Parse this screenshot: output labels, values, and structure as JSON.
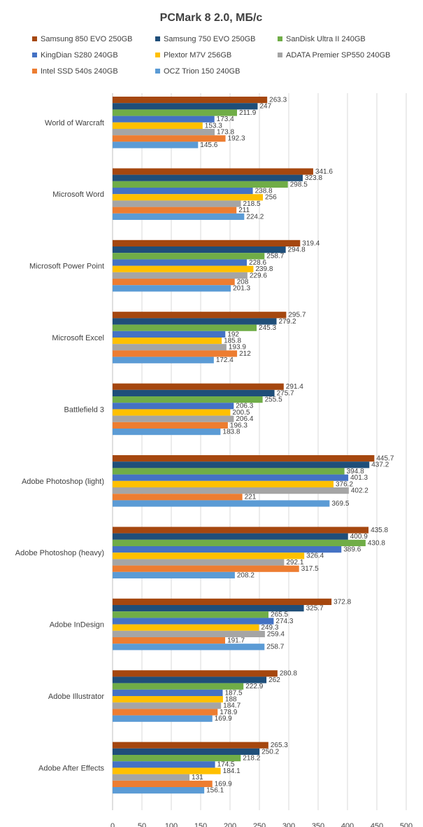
{
  "chart_data": {
    "type": "bar",
    "orientation": "horizontal",
    "title": "PCMark 8 2.0, МБ/с",
    "xlabel": "",
    "ylabel": "",
    "xlim": [
      0,
      500
    ],
    "x_ticks": [
      "0",
      "50",
      "100",
      "150",
      "200",
      "250",
      "300",
      "350",
      "400",
      "450",
      "500"
    ],
    "grid": "vertical",
    "legend_position": "top",
    "categories": [
      "World of Warcraft",
      "Microsoft Word",
      "Microsoft Power Point",
      "Microsoft Excel",
      "Battlefield 3",
      "Adobe Photoshop (light)",
      "Adobe Photoshop (heavy)",
      "Adobe InDesign",
      "Adobe Illustrator",
      "Adobe After Effects"
    ],
    "series": [
      {
        "name": "Samsung 850 EVO 250GB",
        "color": "#a5470f",
        "values": [
          263.3,
          341.6,
          319.4,
          295.7,
          291.4,
          445.7,
          435.8,
          372.8,
          280.8,
          265.3
        ]
      },
      {
        "name": "Samsung 750 EVO 250GB",
        "color": "#1f4e79",
        "values": [
          247,
          323.8,
          294.8,
          279.2,
          275.7,
          437.2,
          400.9,
          325.7,
          262,
          250.2
        ]
      },
      {
        "name": "SanDisk Ultra II 240GB",
        "color": "#70ad47",
        "values": [
          211.9,
          298.5,
          258.7,
          245.3,
          255.5,
          394.8,
          430.8,
          265.5,
          222.9,
          218.2
        ]
      },
      {
        "name": "KingDian S280 240GB",
        "color": "#4472c4",
        "values": [
          173.4,
          238.8,
          228.6,
          192,
          206.3,
          401.3,
          389.6,
          274.3,
          187.5,
          174.5
        ]
      },
      {
        "name": "Plextor M7V 256GB",
        "color": "#ffc000",
        "values": [
          153.3,
          256,
          239.8,
          185.8,
          200.5,
          376.2,
          326.4,
          249.3,
          188,
          184.1
        ]
      },
      {
        "name": "ADATA Premier SP550 240GB",
        "color": "#a5a5a5",
        "values": [
          173.8,
          218.5,
          229.6,
          193.9,
          206.4,
          402.2,
          292.1,
          259.4,
          184.7,
          131
        ]
      },
      {
        "name": "Intel SSD 540s 240GB",
        "color": "#ed7d31",
        "values": [
          192.3,
          211,
          208,
          212,
          196.3,
          221,
          317.5,
          191.7,
          178.9,
          169.9
        ]
      },
      {
        "name": "OCZ Trion 150 240GB",
        "color": "#5b9bd5",
        "values": [
          145.6,
          224.2,
          201.3,
          172.4,
          183.8,
          369.5,
          208.2,
          258.7,
          169.9,
          156.1
        ]
      }
    ]
  }
}
